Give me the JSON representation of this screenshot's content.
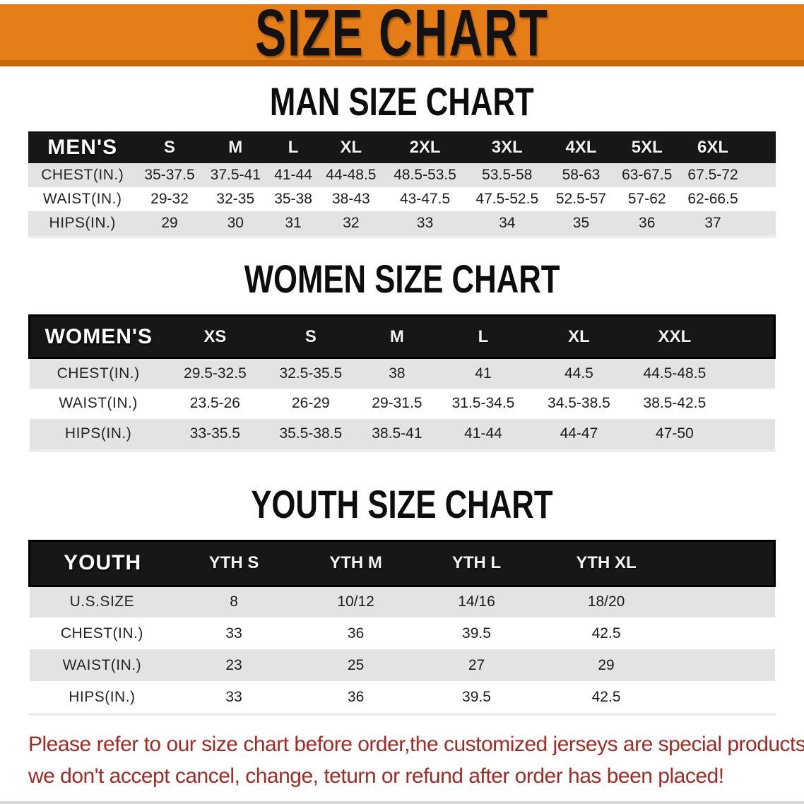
{
  "banner": {
    "title": "SIZE CHART",
    "background_color": "#E67E17",
    "text_color": "#121212"
  },
  "sections": [
    {
      "title": "MAN SIZE CHART",
      "header_label": "MEN'S",
      "columns": [
        "S",
        "M",
        "L",
        "XL",
        "2XL",
        "3XL",
        "4XL",
        "5XL",
        "6XL"
      ],
      "rows": [
        {
          "label": "CHEST(IN.)",
          "values": [
            "35-37.5",
            "37.5-41",
            "41-44",
            "44-48.5",
            "48.5-53.5",
            "53.5-58",
            "58-63",
            "63-67.5",
            "67.5-72"
          ]
        },
        {
          "label": "WAIST(IN.)",
          "values": [
            "29-32",
            "32-35",
            "35-38",
            "38-43",
            "43-47.5",
            "47.5-52.5",
            "52.5-57",
            "57-62",
            "62-66.5"
          ]
        },
        {
          "label": "HIPS(IN.)",
          "values": [
            "29",
            "30",
            "31",
            "32",
            "33",
            "34",
            "35",
            "36",
            "37"
          ]
        }
      ]
    },
    {
      "title": "WOMEN SIZE CHART",
      "header_label": "WOMEN'S",
      "columns": [
        "XS",
        "S",
        "M",
        "L",
        "XL",
        "XXL"
      ],
      "rows": [
        {
          "label": "CHEST(IN.)",
          "values": [
            "29.5-32.5",
            "32.5-35.5",
            "38",
            "41",
            "44.5",
            "44.5-48.5"
          ]
        },
        {
          "label": "WAIST(IN.)",
          "values": [
            "23.5-26",
            "26-29",
            "29-31.5",
            "31.5-34.5",
            "34.5-38.5",
            "38.5-42.5"
          ]
        },
        {
          "label": "HIPS(IN.)",
          "values": [
            "33-35.5",
            "35.5-38.5",
            "38.5-41",
            "41-44",
            "44-47",
            "47-50"
          ]
        }
      ]
    },
    {
      "title": "YOUTH SIZE CHART",
      "header_label": "YOUTH",
      "columns": [
        "YTH S",
        "YTH M",
        "YTH L",
        "YTH XL"
      ],
      "rows": [
        {
          "label": "U.S.SIZE",
          "values": [
            "8",
            "10/12",
            "14/16",
            "18/20"
          ]
        },
        {
          "label": "CHEST(IN.)",
          "values": [
            "33",
            "36",
            "39.5",
            "42.5"
          ]
        },
        {
          "label": "WAIST(IN.)",
          "values": [
            "23",
            "25",
            "27",
            "29"
          ]
        },
        {
          "label": "HIPS(IN.)",
          "values": [
            "33",
            "36",
            "39.5",
            "42.5"
          ]
        }
      ]
    }
  ],
  "disclaimer": {
    "line1": "Please refer to our size chart before order,the customized jerseys are special products,",
    "line2": "we don't accept cancel, change, teturn or refund after order has been placed!",
    "text_color": "#A02C24"
  },
  "colors": {
    "banner_orange": "#E67E17",
    "banner_edge_orange": "#C8690F",
    "table_header_black": "#171717",
    "row_gray": "#E3E3E3",
    "row_white": "#FFFFFF",
    "disclaimer_red": "#A02C24"
  }
}
